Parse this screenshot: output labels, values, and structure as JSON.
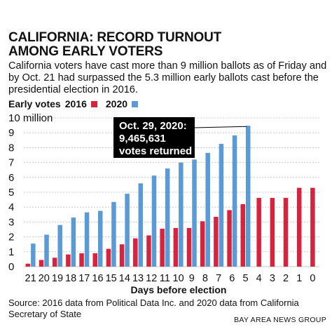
{
  "header": {
    "title_line1": "CALIFORNIA: RECORD TURNOUT",
    "title_line2": "AMONG EARLY VOTERS",
    "subtitle": "California voters have cast more than 9 million ballots as of Friday and by Oct. 21 had surpassed the 5.3 million early ballots cast before the presidential election in 2016."
  },
  "legend": {
    "label": "Early votes",
    "series_2016": "2016",
    "series_2020": "2020"
  },
  "colors": {
    "c2016": "#d6243f",
    "c2020": "#5b9bd5",
    "grid": "#c8c8c8",
    "callout": "#000000"
  },
  "callout": {
    "line1": "Oct. 29, 2020:",
    "line2": "9,465,631",
    "line3": "votes returned"
  },
  "chart_data": {
    "type": "bar",
    "xlabel": "Days before election",
    "ylabel": "",
    "ytop_label": "10 million",
    "ylim": [
      0,
      10
    ],
    "yticks": [
      0,
      1,
      2,
      3,
      4,
      5,
      6,
      7,
      8,
      9,
      10
    ],
    "grid": true,
    "legend_position": "top-left",
    "categories": [
      "21",
      "20",
      "19",
      "18",
      "17",
      "16",
      "15",
      "14",
      "13",
      "12",
      "11",
      "10",
      "9",
      "8",
      "7",
      "6",
      "5",
      "4",
      "3",
      "2",
      "1",
      "0"
    ],
    "series": [
      {
        "name": "2016",
        "values": [
          0.2,
          0.45,
          0.6,
          0.82,
          0.9,
          0.9,
          1.2,
          1.5,
          1.9,
          2.1,
          2.55,
          2.6,
          2.6,
          3.05,
          3.35,
          3.8,
          4.2,
          4.62,
          4.62,
          4.62,
          5.3,
          5.3
        ]
      },
      {
        "name": "2020",
        "values": [
          1.55,
          2.15,
          2.8,
          3.3,
          3.65,
          3.75,
          4.35,
          4.9,
          5.6,
          6.12,
          6.6,
          7.0,
          7.2,
          7.65,
          8.25,
          8.82,
          9.47,
          null,
          null,
          null,
          null,
          null
        ]
      }
    ]
  },
  "footer": {
    "source": "Source: 2016 data from Political Data Inc. and 2020 data from California Secretary of State",
    "credit": "BAY AREA NEWS GROUP"
  }
}
